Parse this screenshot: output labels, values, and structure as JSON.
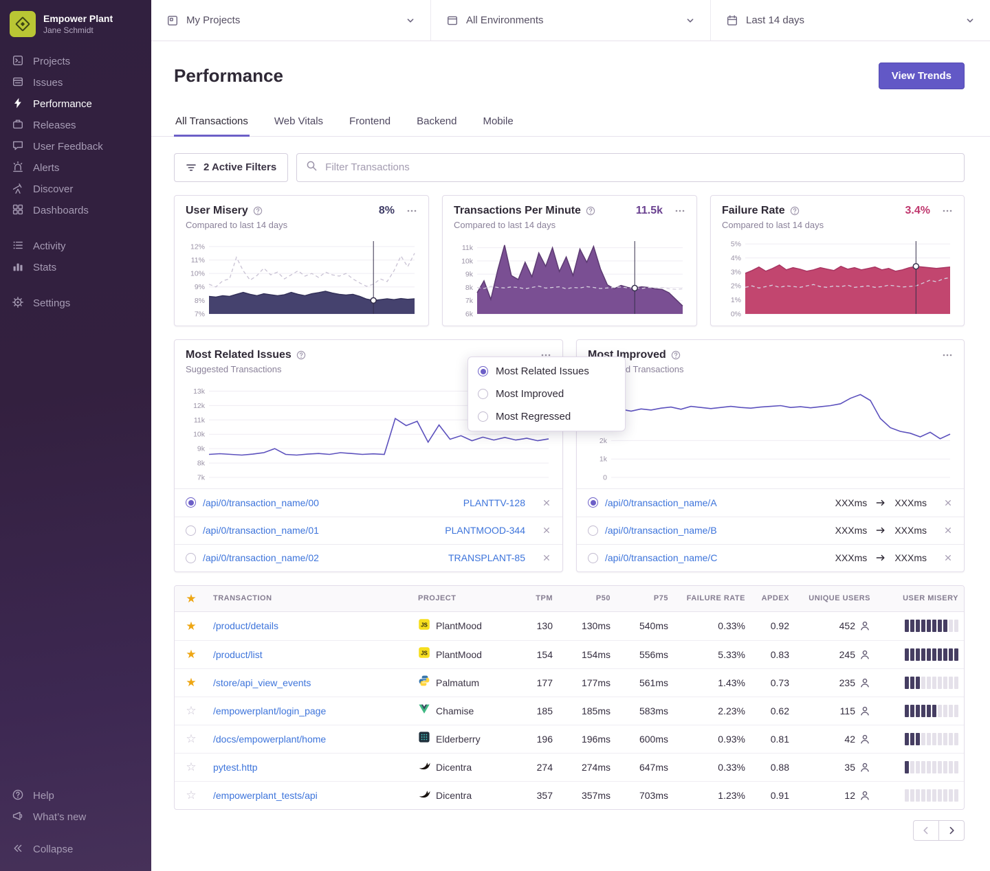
{
  "org": {
    "name": "Empower Plant",
    "user": "Jane Schmidt"
  },
  "colors": {
    "accent": "#6c5fc7",
    "primary_button": "#6258c6",
    "link": "#3d74db",
    "sidebar_top": "#31203f",
    "sidebar_bottom": "#463159",
    "star": "#eea613",
    "misery_bar": "#463e62",
    "misery_chart": "#45426e",
    "tpm_chart": "#7a4f93",
    "failure_chart": "#c2466f",
    "line_chart": "#5b50bd"
  },
  "icons": {
    "star_filled": "★",
    "star_empty": "☆"
  },
  "sidebar": {
    "primary": [
      {
        "label": "Projects",
        "icon": "projects-icon"
      },
      {
        "label": "Issues",
        "icon": "issues-icon"
      },
      {
        "label": "Performance",
        "icon": "lightning-icon",
        "active": true
      },
      {
        "label": "Releases",
        "icon": "releases-icon"
      },
      {
        "label": "User Feedback",
        "icon": "feedback-icon"
      },
      {
        "label": "Alerts",
        "icon": "siren-icon"
      },
      {
        "label": "Discover",
        "icon": "telescope-icon"
      },
      {
        "label": "Dashboards",
        "icon": "dashboards-icon"
      }
    ],
    "secondary": [
      {
        "label": "Activity",
        "icon": "activity-icon"
      },
      {
        "label": "Stats",
        "icon": "stats-icon"
      }
    ],
    "tertiary": [
      {
        "label": "Settings",
        "icon": "gear-icon"
      }
    ],
    "footer": [
      {
        "label": "Help",
        "icon": "help-icon"
      },
      {
        "label": "What’s new",
        "icon": "megaphone-icon"
      },
      {
        "label": "Collapse",
        "icon": "collapse-icon"
      }
    ]
  },
  "topbar": {
    "project": "My Projects",
    "environment": "All Environments",
    "date": "Last 14 days"
  },
  "header": {
    "title": "Performance",
    "view_trends": "View Trends"
  },
  "tabs": [
    {
      "label": "All Transactions",
      "active": true
    },
    {
      "label": "Web Vitals"
    },
    {
      "label": "Frontend"
    },
    {
      "label": "Backend"
    },
    {
      "label": "Mobile"
    }
  ],
  "filter_bar": {
    "filters_label": "2 Active Filters",
    "search_placeholder": "Filter Transactions"
  },
  "chart_data": [
    {
      "id": "user-misery",
      "type": "area",
      "title": "User Misery",
      "value": "8%",
      "subtitle": "Compared to last 14 days",
      "value_color": "#3f3c66",
      "ylim": [
        7,
        12.4
      ],
      "yticks": [
        {
          "v": 12,
          "l": "12%"
        },
        {
          "v": 11,
          "l": "11%"
        },
        {
          "v": 10,
          "l": "10%"
        },
        {
          "v": 9,
          "l": "9%"
        },
        {
          "v": 8,
          "l": "8%"
        },
        {
          "v": 7,
          "l": "7%"
        }
      ],
      "marker_index": 24,
      "series": [
        {
          "name": "current",
          "color": "#45426e",
          "line_color": "#34315a",
          "fill": true,
          "width": 1.5,
          "values": [
            8.3,
            8.25,
            8.35,
            8.3,
            8.45,
            8.6,
            8.45,
            8.35,
            8.5,
            8.42,
            8.35,
            8.42,
            8.6,
            8.45,
            8.35,
            8.5,
            8.58,
            8.68,
            8.55,
            8.45,
            8.4,
            8.45,
            8.3,
            8.1,
            8.0,
            8.06,
            8.12,
            8.06,
            8.14,
            8.08,
            8.12
          ]
        },
        {
          "name": "previous period",
          "color": "#c9c2d4",
          "dashed": true,
          "width": 1.3,
          "values": [
            9.2,
            9.0,
            9.45,
            9.6,
            11.2,
            10.2,
            9.5,
            9.85,
            10.4,
            9.9,
            10.1,
            9.6,
            9.9,
            10.2,
            9.8,
            10.0,
            9.7,
            10.1,
            9.9,
            9.8,
            10.0,
            9.6,
            9.3,
            9.05,
            9.2,
            9.6,
            9.4,
            10.2,
            11.3,
            10.5,
            11.5
          ]
        }
      ]
    },
    {
      "id": "tpm",
      "type": "area",
      "title": "Transactions Per Minute",
      "value": "11.5k",
      "subtitle": "Compared to last 14 days",
      "value_color": "#6a4190",
      "ylim": [
        6,
        11.5
      ],
      "yticks": [
        {
          "v": 11,
          "l": "11k"
        },
        {
          "v": 10,
          "l": "10k"
        },
        {
          "v": 9,
          "l": "9k"
        },
        {
          "v": 8,
          "l": "8k"
        },
        {
          "v": 7,
          "l": "7k"
        },
        {
          "v": 6,
          "l": "6k"
        }
      ],
      "marker_index": 23,
      "series": [
        {
          "name": "current",
          "color": "#7a4f93",
          "line_color": "#5c3a72",
          "fill": true,
          "width": 1.5,
          "values": [
            7.6,
            8.5,
            7.1,
            9.3,
            11.2,
            8.9,
            8.6,
            9.9,
            8.8,
            10.6,
            9.6,
            11.0,
            9.2,
            10.3,
            8.9,
            10.9,
            9.9,
            11.1,
            9.4,
            8.2,
            7.9,
            8.15,
            8.0,
            7.95,
            8.05,
            8.0,
            7.9,
            7.85,
            7.6,
            7.1,
            6.6
          ]
        },
        {
          "name": "previous period",
          "color": "#d6d0df",
          "dashed": true,
          "width": 1.3,
          "values": [
            8.0,
            7.92,
            8.08,
            8.0,
            7.96,
            8.04,
            8.0,
            7.9,
            8.0,
            8.1,
            7.95,
            8.0,
            8.05,
            7.9,
            8.0,
            7.96,
            8.06,
            8.0,
            7.92,
            7.96,
            8.0,
            8.04,
            7.96,
            8.0,
            7.92,
            8.0,
            7.96,
            8.0,
            7.9,
            7.86,
            7.9
          ]
        }
      ]
    },
    {
      "id": "failure-rate",
      "type": "area",
      "title": "Failure Rate",
      "value": "3.4%",
      "subtitle": "Compared to last 14 days",
      "value_color": "#c0386e",
      "ylim": [
        0,
        5.2
      ],
      "yticks": [
        {
          "v": 5,
          "l": "5%"
        },
        {
          "v": 4,
          "l": "4%"
        },
        {
          "v": 3,
          "l": "3%"
        },
        {
          "v": 2,
          "l": "2%"
        },
        {
          "v": 1,
          "l": "1%"
        },
        {
          "v": 0,
          "l": "0%"
        }
      ],
      "marker_index": 25,
      "series": [
        {
          "name": "current",
          "color": "#c2466f",
          "line_color": "#a83562",
          "fill": true,
          "width": 1.5,
          "values": [
            2.9,
            3.1,
            3.35,
            3.05,
            3.25,
            3.5,
            3.15,
            3.3,
            3.2,
            3.05,
            3.15,
            3.3,
            3.2,
            3.1,
            3.4,
            3.2,
            3.3,
            3.15,
            3.25,
            3.35,
            3.15,
            3.25,
            3.05,
            3.15,
            3.3,
            3.4,
            3.35,
            3.3,
            3.25,
            3.3,
            3.35
          ]
        },
        {
          "name": "previous period",
          "color": "#d6d0df",
          "dashed": true,
          "width": 1.3,
          "values": [
            1.9,
            2.0,
            1.85,
            1.95,
            2.05,
            1.9,
            2.0,
            1.96,
            1.9,
            2.0,
            2.1,
            1.95,
            1.9,
            2.0,
            1.95,
            2.05,
            1.9,
            1.95,
            2.0,
            1.9,
            1.95,
            2.05,
            2.0,
            1.92,
            1.96,
            2.0,
            2.2,
            2.4,
            2.3,
            2.5,
            2.6
          ]
        }
      ]
    },
    {
      "id": "most-related-issues",
      "type": "line",
      "title": "Most Related Issues",
      "subtitle": "Suggested Transactions",
      "ylim": [
        7,
        13.4
      ],
      "yticks": [
        {
          "v": 13,
          "l": "13k"
        },
        {
          "v": 12,
          "l": "12k"
        },
        {
          "v": 11,
          "l": "11k"
        },
        {
          "v": 10,
          "l": "10k"
        },
        {
          "v": 9,
          "l": "9k"
        },
        {
          "v": 8,
          "l": "8k"
        },
        {
          "v": 7,
          "l": "7k"
        }
      ],
      "series": [
        {
          "name": "transactions",
          "color": "#5b50bd",
          "width": 1.6,
          "values": [
            8.6,
            8.65,
            8.6,
            8.55,
            8.62,
            8.72,
            9.0,
            8.6,
            8.55,
            8.62,
            8.66,
            8.6,
            8.72,
            8.66,
            8.6,
            8.64,
            8.6,
            11.1,
            10.6,
            10.9,
            9.45,
            10.65,
            9.65,
            9.9,
            9.55,
            9.8,
            9.6,
            9.78,
            9.6,
            9.72,
            9.55,
            9.68
          ]
        }
      ]
    },
    {
      "id": "most-improved",
      "type": "line",
      "title": "Most Improved",
      "subtitle": "Suggested Transactions",
      "ylim": [
        0,
        5
      ],
      "yticks": [
        {
          "v": 2,
          "l": "2k"
        },
        {
          "v": 1,
          "l": "1k"
        },
        {
          "v": 0,
          "l": "0"
        }
      ],
      "series": [
        {
          "name": "transactions",
          "color": "#5b50bd",
          "width": 1.6,
          "values": [
            3.85,
            3.7,
            3.6,
            3.72,
            3.66,
            3.76,
            3.82,
            3.7,
            3.86,
            3.8,
            3.74,
            3.8,
            3.86,
            3.8,
            3.76,
            3.82,
            3.86,
            3.9,
            3.8,
            3.84,
            3.78,
            3.84,
            3.9,
            4.0,
            4.3,
            4.5,
            4.18,
            3.2,
            2.7,
            2.5,
            2.4,
            2.2,
            2.45,
            2.1,
            2.35
          ]
        }
      ]
    }
  ],
  "menu": {
    "items": [
      {
        "label": "Most Related Issues",
        "selected": true
      },
      {
        "label": "Most Improved",
        "selected": false
      },
      {
        "label": "Most Regressed",
        "selected": false
      }
    ]
  },
  "related_card": {
    "items": [
      {
        "name": "/api/0/transaction_name/00",
        "issue": "PLANTTV-128",
        "selected": true
      },
      {
        "name": "/api/0/transaction_name/01",
        "issue": "PLANTMOOD-344",
        "selected": false
      },
      {
        "name": "/api/0/transaction_name/02",
        "issue": "TRANSPLANT-85",
        "selected": false
      }
    ]
  },
  "improved_card": {
    "items": [
      {
        "name": "/api/0/transaction_name/A",
        "from": "XXXms",
        "to": "XXXms",
        "selected": true
      },
      {
        "name": "/api/0/transaction_name/B",
        "from": "XXXms",
        "to": "XXXms",
        "selected": false
      },
      {
        "name": "/api/0/transaction_name/C",
        "from": "XXXms",
        "to": "XXXms",
        "selected": false
      }
    ]
  },
  "table": {
    "columns": [
      "TRANSACTION",
      "PROJECT",
      "TPM",
      "P50",
      "P75",
      "FAILURE RATE",
      "APDEX",
      "UNIQUE USERS",
      "USER MISERY"
    ],
    "rows": [
      {
        "starred": true,
        "transaction": "/product/details",
        "project": "PlantMood",
        "platform": "javascript",
        "tpm": "130",
        "p50": "130ms",
        "p75": "540ms",
        "failure_rate": "0.33%",
        "apdex": "0.92",
        "users": "452",
        "misery_filled": 8,
        "misery_total": 10
      },
      {
        "starred": true,
        "transaction": "/product/list",
        "project": "PlantMood",
        "platform": "javascript",
        "tpm": "154",
        "p50": "154ms",
        "p75": "556ms",
        "failure_rate": "5.33%",
        "apdex": "0.83",
        "users": "245",
        "misery_filled": 10,
        "misery_total": 10
      },
      {
        "starred": true,
        "transaction": "/store/api_view_events",
        "project": "Palmatum",
        "platform": "python",
        "tpm": "177",
        "p50": "177ms",
        "p75": "561ms",
        "failure_rate": "1.43%",
        "apdex": "0.73",
        "users": "235",
        "misery_filled": 3,
        "misery_total": 10
      },
      {
        "starred": false,
        "transaction": "/empowerplant/login_page",
        "project": "Chamise",
        "platform": "vue",
        "tpm": "185",
        "p50": "185ms",
        "p75": "583ms",
        "failure_rate": "2.23%",
        "apdex": "0.62",
        "users": "115",
        "misery_filled": 6,
        "misery_total": 10
      },
      {
        "starred": false,
        "transaction": "/docs/empowerplant/home",
        "project": "Elderberry",
        "platform": "elderberry",
        "tpm": "196",
        "p50": "196ms",
        "p75": "600ms",
        "failure_rate": "0.93%",
        "apdex": "0.81",
        "users": "42",
        "misery_filled": 3,
        "misery_total": 10
      },
      {
        "starred": false,
        "transaction": "pytest.http",
        "project": "Dicentra",
        "platform": "bird",
        "tpm": "274",
        "p50": "274ms",
        "p75": "647ms",
        "failure_rate": "0.33%",
        "apdex": "0.88",
        "users": "35",
        "misery_filled": 1,
        "misery_total": 10
      },
      {
        "starred": false,
        "transaction": "/empowerplant_tests/api",
        "project": "Dicentra",
        "platform": "bird",
        "tpm": "357",
        "p50": "357ms",
        "p75": "703ms",
        "failure_rate": "1.23%",
        "apdex": "0.91",
        "users": "12",
        "misery_filled": 0,
        "misery_total": 10
      }
    ]
  }
}
